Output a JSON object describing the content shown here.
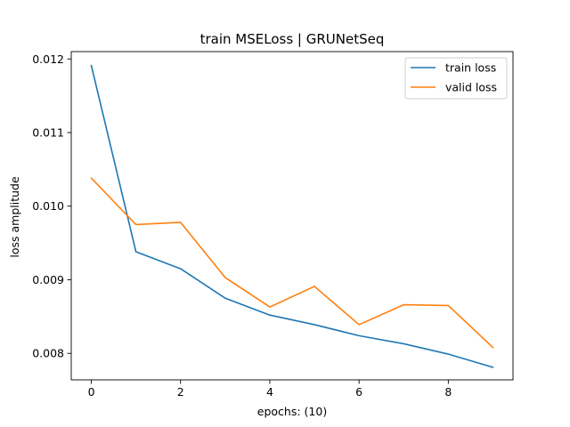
{
  "chart_data": {
    "type": "line",
    "title": "train MSELoss | GRUNetSeq",
    "xlabel": "epochs: (10)",
    "ylabel": "loss amplitude",
    "xlim": [
      -0.45,
      9.45
    ],
    "ylim": [
      0.00764,
      0.0121
    ],
    "xticks": [
      0,
      2,
      4,
      6,
      8
    ],
    "xtick_labels": [
      "0",
      "2",
      "4",
      "6",
      "8"
    ],
    "yticks": [
      0.008,
      0.009,
      0.01,
      0.011,
      0.012
    ],
    "ytick_labels": [
      "0.008",
      "0.009",
      "0.010",
      "0.011",
      "0.012"
    ],
    "grid": false,
    "legend_position": "top-right",
    "x": [
      0,
      1,
      2,
      3,
      4,
      5,
      6,
      7,
      8,
      9
    ],
    "series": [
      {
        "name": "train loss",
        "color": "#1f77b4",
        "values": [
          0.01191,
          0.00938,
          0.00915,
          0.00875,
          0.00852,
          0.00839,
          0.00824,
          0.00813,
          0.00799,
          0.00781
        ]
      },
      {
        "name": "valid loss",
        "color": "#ff7f0e",
        "values": [
          0.01038,
          0.00975,
          0.00978,
          0.00903,
          0.00863,
          0.00891,
          0.00839,
          0.00866,
          0.00865,
          0.00808
        ]
      }
    ]
  }
}
